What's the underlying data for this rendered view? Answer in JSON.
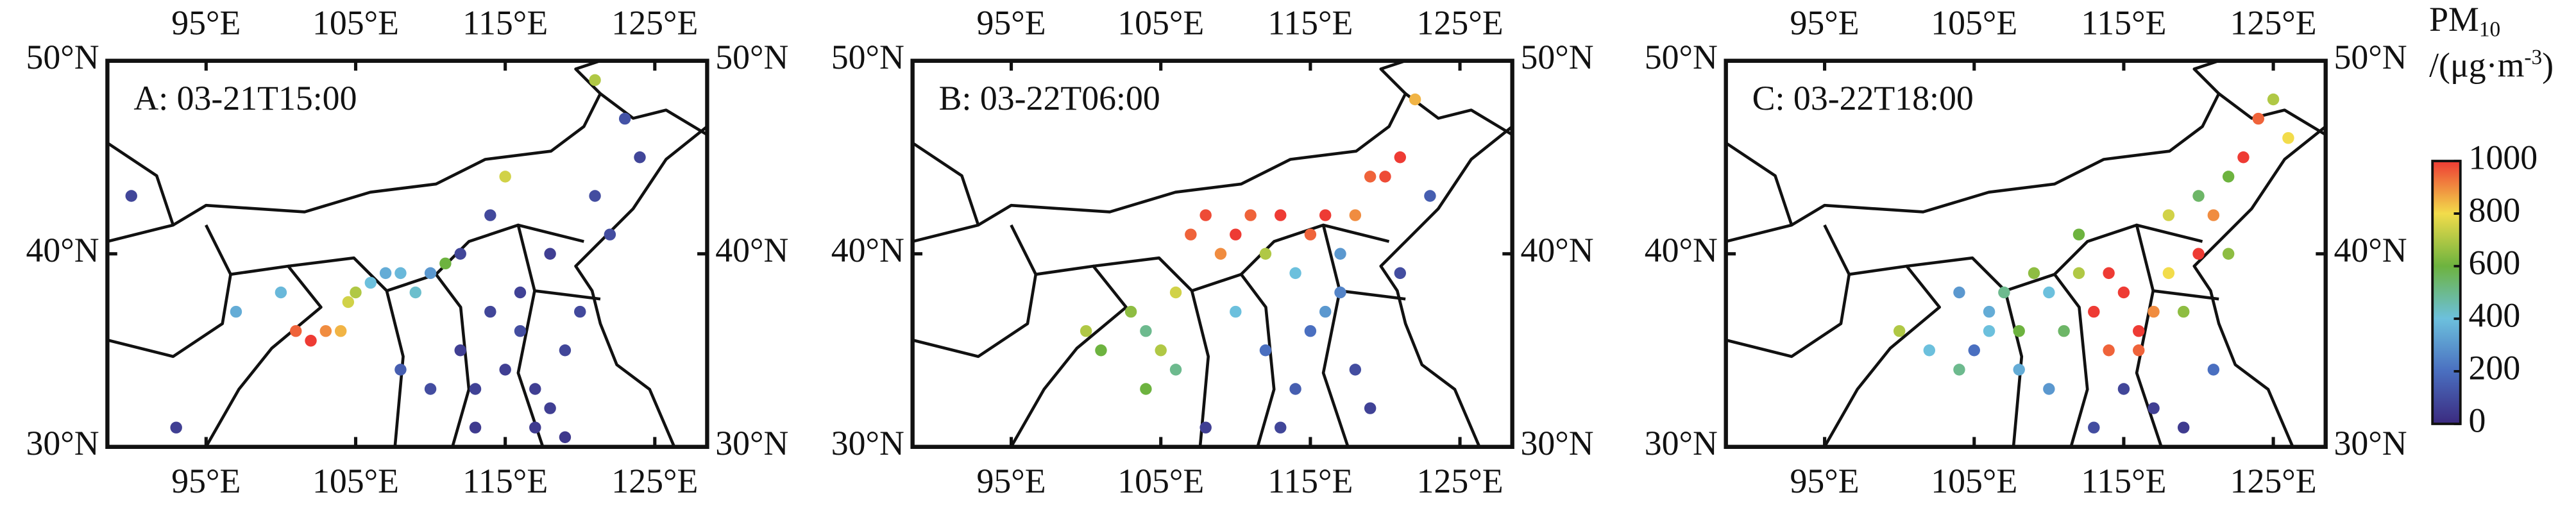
{
  "chart_data": [
    {
      "type": "scatter",
      "title": "A: 03-21T15:00",
      "xlim": [
        88.4,
        128.5
      ],
      "ylim": [
        30,
        50
      ],
      "xticks": [
        {
          "value": 95,
          "label": "95°E"
        },
        {
          "value": 105,
          "label": "105°E"
        },
        {
          "value": 115,
          "label": "115°E"
        },
        {
          "value": 125,
          "label": "125°E"
        }
      ],
      "yticks": [
        {
          "value": 30,
          "label": "30°N"
        },
        {
          "value": 40,
          "label": "40°N"
        },
        {
          "value": 50,
          "label": "50°N"
        }
      ],
      "x": [
        90,
        93,
        97,
        100,
        101,
        102,
        103,
        104,
        104.5,
        105,
        106,
        107,
        108,
        109,
        110,
        111,
        112,
        113,
        114,
        115,
        116,
        117,
        118,
        119,
        120,
        121,
        112,
        114,
        116,
        118,
        110,
        113,
        117,
        119,
        122,
        124,
        123,
        121,
        115,
        108
      ],
      "y": [
        43,
        31,
        37,
        38,
        36,
        35.5,
        36,
        36,
        37.5,
        38,
        38.5,
        39,
        39,
        38,
        39,
        39.5,
        35,
        33,
        37,
        34,
        36,
        31,
        32,
        35,
        37,
        43,
        40,
        42,
        38,
        40,
        33,
        31,
        33,
        30.5,
        41,
        45,
        47,
        49,
        44,
        34
      ],
      "values": [
        80,
        60,
        350,
        380,
        950,
        1000,
        900,
        850,
        750,
        700,
        400,
        350,
        380,
        420,
        300,
        600,
        60,
        70,
        80,
        60,
        100,
        50,
        60,
        80,
        90,
        100,
        80,
        90,
        70,
        60,
        100,
        50,
        60,
        40,
        100,
        80,
        120,
        700,
        750,
        150
      ]
    },
    {
      "type": "scatter",
      "title": "B: 03-22T06:00",
      "xlim": [
        88.4,
        128.5
      ],
      "ylim": [
        30,
        50
      ],
      "xticks": [
        {
          "value": 95,
          "label": "95°E"
        },
        {
          "value": 105,
          "label": "105°E"
        },
        {
          "value": 115,
          "label": "115°E"
        },
        {
          "value": 125,
          "label": "125°E"
        }
      ],
      "yticks": [
        {
          "value": 30,
          "label": "30°N"
        },
        {
          "value": 40,
          "label": "40°N"
        },
        {
          "value": 50,
          "label": "50°N"
        }
      ],
      "x": [
        100,
        101,
        103,
        104,
        105,
        106,
        107,
        108,
        109,
        110,
        111,
        112,
        113,
        114,
        115,
        116,
        117,
        118,
        119,
        120,
        121,
        122,
        112,
        114,
        116,
        118,
        110,
        106,
        104,
        113,
        115,
        117,
        119,
        121,
        123,
        108
      ],
      "y": [
        36,
        35,
        37,
        36,
        35,
        38,
        41,
        42,
        40,
        41,
        42,
        40,
        42,
        39,
        41,
        42,
        40,
        42,
        44,
        44,
        45,
        48,
        35,
        33,
        37,
        34,
        37,
        34,
        33,
        31,
        36,
        38,
        32,
        39,
        43,
        31
      ],
      "values": [
        700,
        600,
        650,
        500,
        700,
        750,
        950,
        980,
        900,
        1000,
        950,
        700,
        1000,
        400,
        950,
        1000,
        300,
        900,
        950,
        980,
        1000,
        850,
        200,
        150,
        300,
        100,
        400,
        500,
        600,
        80,
        200,
        250,
        70,
        100,
        150,
        60
      ]
    },
    {
      "type": "scatter",
      "title": "C: 03-22T18:00",
      "xlim": [
        88.4,
        128.5
      ],
      "ylim": [
        30,
        50
      ],
      "xticks": [
        {
          "value": 95,
          "label": "95°E"
        },
        {
          "value": 105,
          "label": "105°E"
        },
        {
          "value": 115,
          "label": "115°E"
        },
        {
          "value": 125,
          "label": "125°E"
        }
      ],
      "yticks": [
        {
          "value": 30,
          "label": "30°N"
        },
        {
          "value": 40,
          "label": "40°N"
        },
        {
          "value": 50,
          "label": "50°N"
        }
      ],
      "x": [
        100,
        102,
        104,
        105,
        106,
        107,
        108,
        109,
        110,
        111,
        112,
        113,
        114,
        115,
        116,
        117,
        118,
        119,
        120,
        121,
        122,
        123,
        124,
        125,
        113,
        115,
        117,
        119,
        121,
        110,
        108,
        106,
        104,
        112,
        118,
        122,
        126,
        114,
        116,
        120
      ],
      "y": [
        36,
        35,
        38,
        35,
        37,
        38,
        36,
        39,
        38,
        36,
        39,
        37,
        35,
        38,
        36,
        37,
        39,
        37,
        40,
        42,
        44,
        45,
        47,
        48,
        31,
        33,
        32,
        31,
        34,
        33,
        34,
        36,
        34,
        41,
        42,
        40,
        46,
        39,
        35,
        43
      ],
      "values": [
        700,
        400,
        300,
        200,
        350,
        500,
        600,
        650,
        400,
        550,
        700,
        1000,
        950,
        1000,
        1000,
        900,
        800,
        650,
        1000,
        900,
        600,
        1000,
        950,
        700,
        100,
        80,
        60,
        50,
        200,
        300,
        350,
        400,
        500,
        600,
        750,
        650,
        800,
        1000,
        950,
        550
      ],
      "colorbar": {
        "title": "PM",
        "title_sub": "10",
        "unit": "/(μg·m",
        "unit_sup": "-3",
        "unit_end": ")",
        "clim": [
          0,
          1000
        ],
        "ticks": [
          0,
          200,
          400,
          600,
          800,
          1000
        ],
        "colors": [
          "#3b2a7f",
          "#4a6fc0",
          "#6cc0dd",
          "#6db33f",
          "#f2dc4b",
          "#ee3b34"
        ]
      }
    }
  ]
}
